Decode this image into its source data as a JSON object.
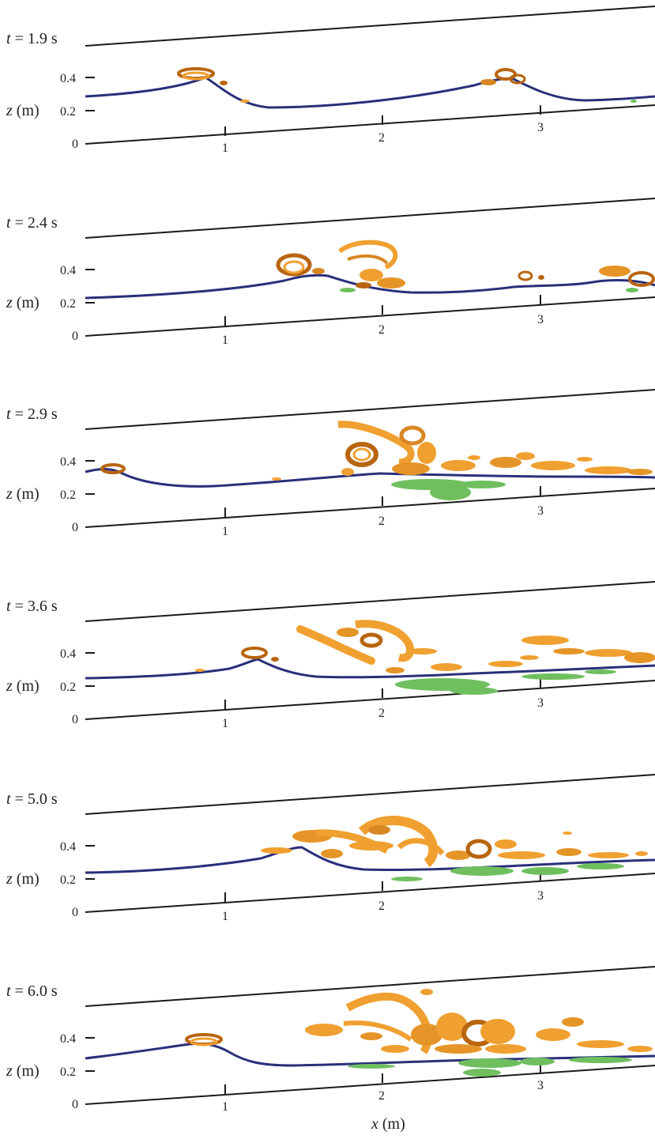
{
  "figure": {
    "colors": {
      "axis": "#1a1a1a",
      "surface": "#2a2f7a",
      "vortex_orange": "#f0a030",
      "vortex_orange_dark": "#b8650f",
      "vortex_green": "#6fbf5f",
      "vortex_green_dark": "#3f8f3a"
    },
    "y_axis_label_var": "z",
    "y_axis_label_unit": "(m)",
    "y_ticks": [
      "0",
      "0.2",
      "0.4"
    ],
    "x_ticks": [
      "1",
      "2",
      "3"
    ],
    "x_axis_label_var": "x",
    "x_axis_label_unit": "(m)",
    "panels": [
      {
        "t_var": "t",
        "t_label": "= 1.9 s"
      },
      {
        "t_var": "t",
        "t_label": "= 2.4 s"
      },
      {
        "t_var": "t",
        "t_label": "= 2.9 s"
      },
      {
        "t_var": "t",
        "t_label": "= 3.6 s"
      },
      {
        "t_var": "t",
        "t_label": "= 5.0 s"
      },
      {
        "t_var": "t",
        "t_label": "= 6.0 s"
      }
    ]
  }
}
